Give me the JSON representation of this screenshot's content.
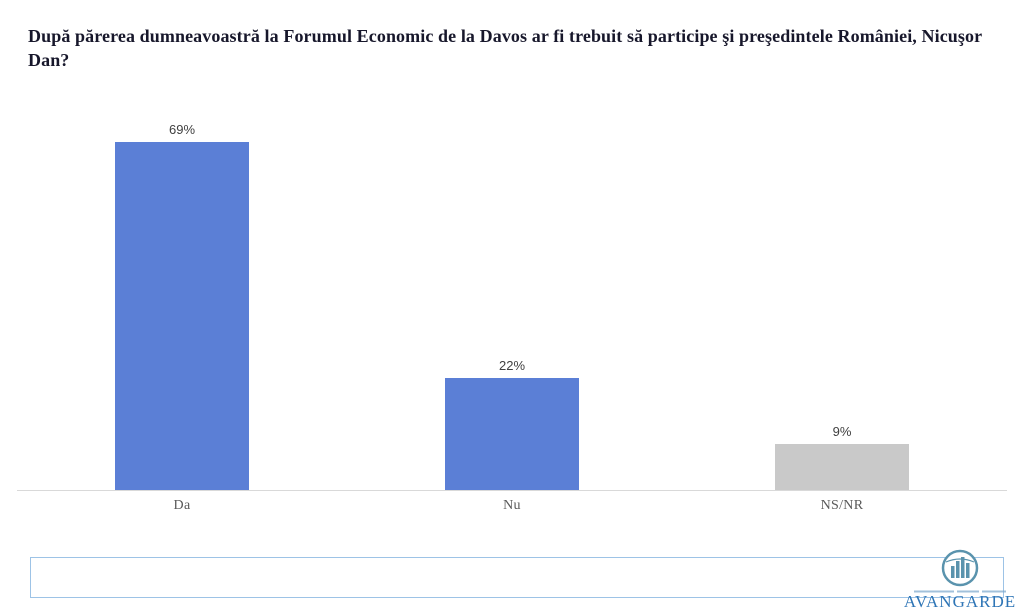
{
  "title": "După părerea dumneavoastră la Forumul Economic de la Davos ar fi trebuit să participe şi preşedintele României, Nicuşor Dan?",
  "chart_data": {
    "type": "bar",
    "categories": [
      "Da",
      "Nu",
      "NS/NR"
    ],
    "values": [
      69,
      22,
      9
    ],
    "value_labels": [
      "69%",
      "22%",
      "9%"
    ],
    "series_colors": [
      "#5b7fd6",
      "#5b7fd6",
      "#c9c9c9"
    ],
    "title": "După părerea dumneavoastră la Forumul Economic de la Davos ar fi trebuit să participe şi preşedintele României, Nicuşor Dan?",
    "xlabel": "",
    "ylabel": "",
    "ylim": [
      0,
      72
    ],
    "grid": false,
    "legend": false,
    "value_label_color": "#404040",
    "category_label_color": "#595959",
    "axis_line_color": "#d9d9d9"
  },
  "branding": {
    "name": "AVANGARDE",
    "accent_color": "#2e75b6",
    "logo_icon": "globe-bars-icon"
  }
}
